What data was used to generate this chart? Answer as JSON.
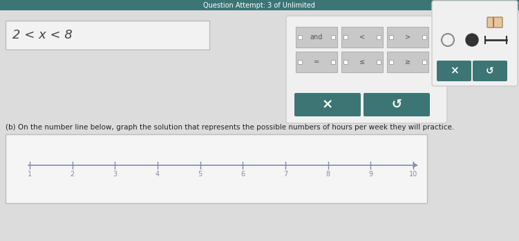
{
  "bg_color": "#dcdcdc",
  "top_bg": "#3d7575",
  "top_text": "Question Attempt: 3 of Unlimited",
  "top_text_color": "#ffffff",
  "answer_box_text": "2 < x < 8",
  "answer_box_bg": "#f2f2f2",
  "answer_box_border": "#bbbbbb",
  "panel_bg": "#f0f0f0",
  "panel_border": "#cccccc",
  "button_bg": "#3d7575",
  "button_text_color": "#ffffff",
  "cell_bg": "#c8c8c8",
  "cell_border": "#b0b0b0",
  "instruction_text": "(b) On the number line below, graph the solution that represents the possible numbers of hours per week they will practice.",
  "instruction_color": "#222222",
  "numberline_bg": "#f5f5f5",
  "numberline_border": "#bbbbbb",
  "numberline_line_color": "#8888aa",
  "numberline_tick_color": "#8888aa",
  "numberline_label_color": "#8888aa",
  "tick_positions": [
    1,
    2,
    3,
    4,
    5,
    6,
    7,
    8,
    9,
    10
  ],
  "right_panel_bg": "#f0f0f0",
  "right_panel_border": "#cccccc"
}
